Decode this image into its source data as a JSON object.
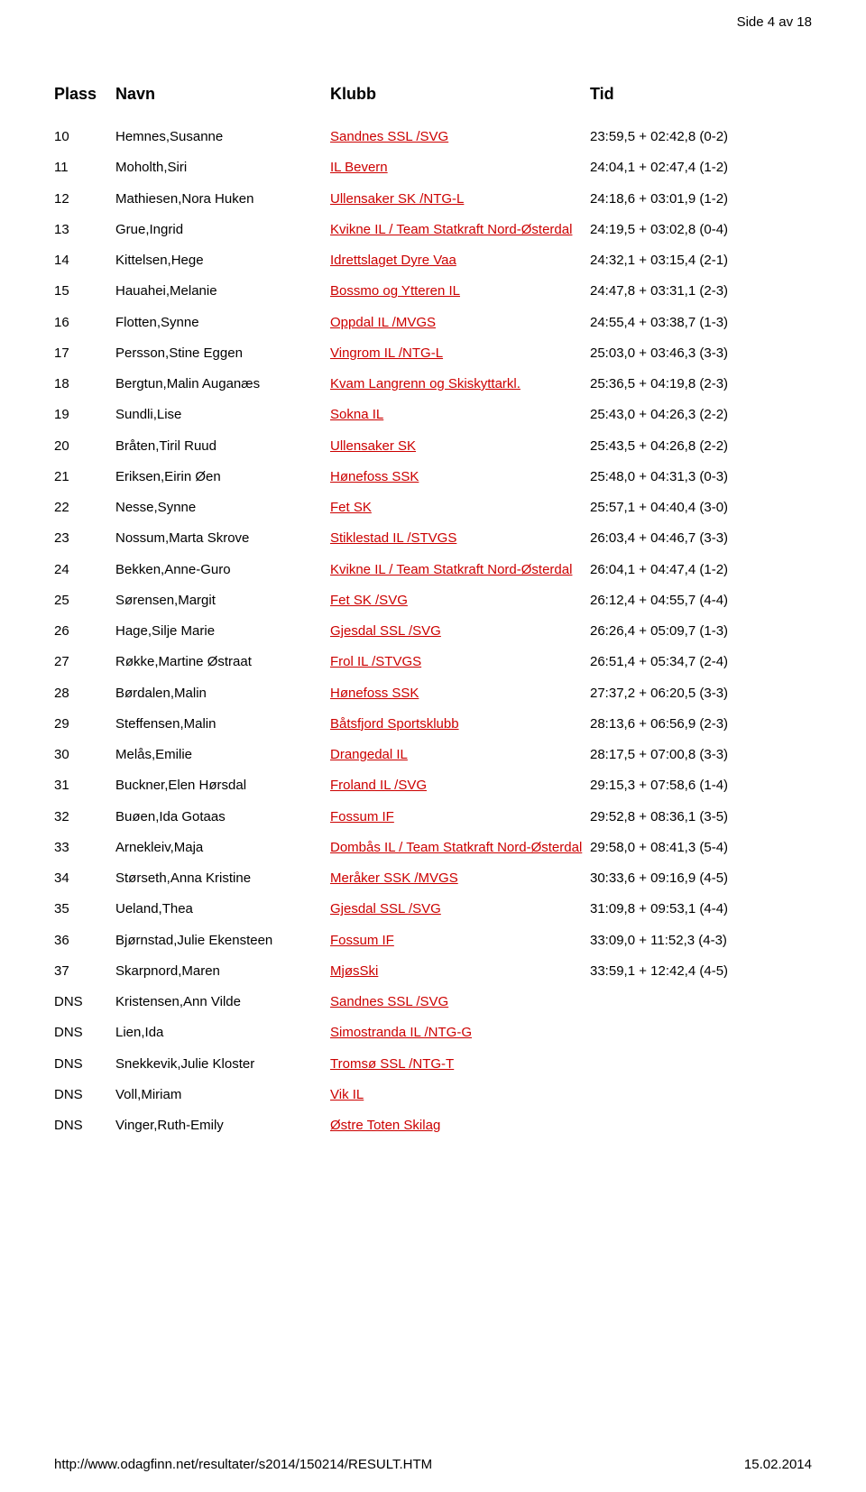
{
  "page_indicator": "Side 4 av 18",
  "footer": {
    "url": "http://www.odagfinn.net/resultater/s2014/150214/RESULT.HTM",
    "date": "15.02.2014"
  },
  "columns": {
    "plass": "Plass",
    "navn": "Navn",
    "klubb": "Klubb",
    "tid": "Tid"
  },
  "rows": [
    {
      "plass": "10",
      "navn": "Hemnes,Susanne",
      "klubb": "Sandnes SSL /SVG",
      "tid": "23:59,5 + 02:42,8 (0-2)"
    },
    {
      "plass": "11",
      "navn": "Moholth,Siri",
      "klubb": "IL Bevern",
      "tid": "24:04,1 + 02:47,4 (1-2)"
    },
    {
      "plass": "12",
      "navn": "Mathiesen,Nora Huken",
      "klubb": "Ullensaker SK /NTG-L",
      "tid": "24:18,6 + 03:01,9 (1-2)"
    },
    {
      "plass": "13",
      "navn": "Grue,Ingrid",
      "klubb": "Kvikne IL / Team Statkraft Nord-Østerdal",
      "tid": "24:19,5 + 03:02,8 (0-4)"
    },
    {
      "plass": "14",
      "navn": "Kittelsen,Hege",
      "klubb": "Idrettslaget Dyre Vaa",
      "tid": "24:32,1 + 03:15,4 (2-1)"
    },
    {
      "plass": "15",
      "navn": "Hauahei,Melanie",
      "klubb": "Bossmo og Ytteren IL",
      "tid": "24:47,8 + 03:31,1 (2-3)"
    },
    {
      "plass": "16",
      "navn": "Flotten,Synne",
      "klubb": "Oppdal IL /MVGS",
      "tid": "24:55,4 + 03:38,7 (1-3)"
    },
    {
      "plass": "17",
      "navn": "Persson,Stine Eggen",
      "klubb": "Vingrom IL /NTG-L",
      "tid": "25:03,0 + 03:46,3 (3-3)"
    },
    {
      "plass": "18",
      "navn": "Bergtun,Malin Auganæs",
      "klubb": "Kvam Langrenn og Skiskyttarkl.",
      "tid": "25:36,5 + 04:19,8 (2-3)"
    },
    {
      "plass": "19",
      "navn": "Sundli,Lise",
      "klubb": "Sokna IL",
      "tid": "25:43,0 + 04:26,3 (2-2)"
    },
    {
      "plass": "20",
      "navn": "Bråten,Tiril Ruud",
      "klubb": "Ullensaker SK",
      "tid": "25:43,5 + 04:26,8 (2-2)"
    },
    {
      "plass": "21",
      "navn": "Eriksen,Eirin Øen",
      "klubb": "Hønefoss SSK",
      "tid": "25:48,0 + 04:31,3 (0-3)"
    },
    {
      "plass": "22",
      "navn": "Nesse,Synne",
      "klubb": "Fet SK",
      "tid": "25:57,1 + 04:40,4 (3-0)"
    },
    {
      "plass": "23",
      "navn": "Nossum,Marta Skrove",
      "klubb": "Stiklestad IL /STVGS",
      "tid": "26:03,4 + 04:46,7 (3-3)"
    },
    {
      "plass": "24",
      "navn": "Bekken,Anne-Guro",
      "klubb": "Kvikne IL / Team Statkraft Nord-Østerdal",
      "tid": "26:04,1 + 04:47,4 (1-2)"
    },
    {
      "plass": "25",
      "navn": "Sørensen,Margit",
      "klubb": "Fet SK /SVG",
      "tid": "26:12,4 + 04:55,7 (4-4)"
    },
    {
      "plass": "26",
      "navn": "Hage,Silje Marie",
      "klubb": "Gjesdal SSL /SVG",
      "tid": "26:26,4 + 05:09,7 (1-3)"
    },
    {
      "plass": "27",
      "navn": "Røkke,Martine Østraat",
      "klubb": "Frol IL /STVGS",
      "tid": "26:51,4 + 05:34,7 (2-4)"
    },
    {
      "plass": "28",
      "navn": "Børdalen,Malin",
      "klubb": "Hønefoss SSK",
      "tid": "27:37,2 + 06:20,5 (3-3)"
    },
    {
      "plass": "29",
      "navn": "Steffensen,Malin",
      "klubb": "Båtsfjord Sportsklubb",
      "tid": "28:13,6 + 06:56,9 (2-3)"
    },
    {
      "plass": "30",
      "navn": "Melås,Emilie",
      "klubb": "Drangedal IL",
      "tid": "28:17,5 + 07:00,8 (3-3)"
    },
    {
      "plass": "31",
      "navn": "Buckner,Elen Hørsdal",
      "klubb": "Froland IL /SVG",
      "tid": "29:15,3 + 07:58,6 (1-4)"
    },
    {
      "plass": "32",
      "navn": "Buøen,Ida Gotaas",
      "klubb": "Fossum IF",
      "tid": "29:52,8 + 08:36,1 (3-5)"
    },
    {
      "plass": "33",
      "navn": "Arnekleiv,Maja",
      "klubb": "Dombås IL / Team Statkraft Nord-Østerdal",
      "tid": "29:58,0 + 08:41,3 (5-4)"
    },
    {
      "plass": "34",
      "navn": "Størseth,Anna Kristine",
      "klubb": "Meråker SSK /MVGS",
      "tid": "30:33,6 + 09:16,9 (4-5)"
    },
    {
      "plass": "35",
      "navn": "Ueland,Thea",
      "klubb": "Gjesdal SSL /SVG",
      "tid": "31:09,8 + 09:53,1 (4-4)"
    },
    {
      "plass": "36",
      "navn": "Bjørnstad,Julie Ekensteen",
      "klubb": "Fossum IF",
      "tid": "33:09,0 + 11:52,3 (4-3)"
    },
    {
      "plass": "37",
      "navn": "Skarpnord,Maren",
      "klubb": "MjøsSki",
      "tid": "33:59,1 + 12:42,4 (4-5)"
    },
    {
      "plass": "DNS",
      "navn": "Kristensen,Ann Vilde",
      "klubb": "Sandnes SSL /SVG",
      "tid": ""
    },
    {
      "plass": "DNS",
      "navn": "Lien,Ida",
      "klubb": "Simostranda IL /NTG-G",
      "tid": ""
    },
    {
      "plass": "DNS",
      "navn": "Snekkevik,Julie Kloster",
      "klubb": "Tromsø SSL /NTG-T",
      "tid": ""
    },
    {
      "plass": "DNS",
      "navn": "Voll,Miriam",
      "klubb": "Vik IL",
      "tid": ""
    },
    {
      "plass": "DNS",
      "navn": "Vinger,Ruth-Emily",
      "klubb": "Østre Toten Skilag",
      "tid": ""
    }
  ],
  "colors": {
    "link": "#cc0000",
    "text": "#000000",
    "background": "#ffffff"
  }
}
